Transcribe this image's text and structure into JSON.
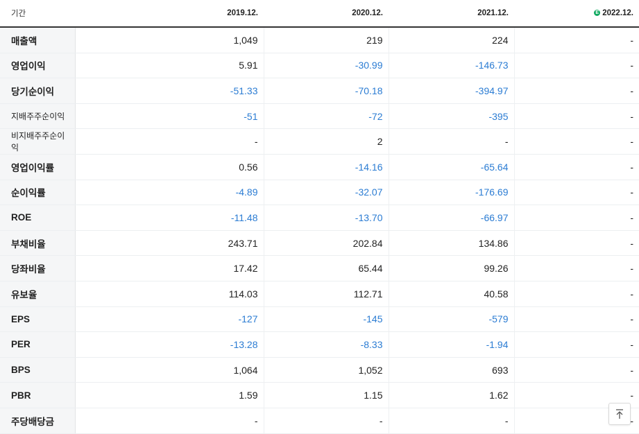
{
  "header": {
    "label": "기간",
    "periods": [
      "2019.12.",
      "2020.12.",
      "2021.12.",
      "2022.12."
    ],
    "estimate_badge": "E"
  },
  "rows": [
    {
      "name": "매출액",
      "values": [
        "1,049",
        "219",
        "224",
        "-"
      ]
    },
    {
      "name": "영업이익",
      "values": [
        "5.91",
        "-30.99",
        "-146.73",
        "-"
      ]
    },
    {
      "name": "당기순이익",
      "values": [
        "-51.33",
        "-70.18",
        "-394.97",
        "-"
      ]
    },
    {
      "name": "지배주주순이익",
      "values": [
        "-51",
        "-72",
        "-395",
        "-"
      ]
    },
    {
      "name": "비지배주주순이익",
      "values": [
        "-",
        "2",
        "-",
        "-"
      ]
    },
    {
      "name": "영업이익률",
      "values": [
        "0.56",
        "-14.16",
        "-65.64",
        "-"
      ]
    },
    {
      "name": "순이익률",
      "values": [
        "-4.89",
        "-32.07",
        "-176.69",
        "-"
      ]
    },
    {
      "name": "ROE",
      "values": [
        "-11.48",
        "-13.70",
        "-66.97",
        "-"
      ]
    },
    {
      "name": "부채비율",
      "values": [
        "243.71",
        "202.84",
        "134.86",
        "-"
      ]
    },
    {
      "name": "당좌비율",
      "values": [
        "17.42",
        "65.44",
        "99.26",
        "-"
      ]
    },
    {
      "name": "유보율",
      "values": [
        "114.03",
        "112.71",
        "40.58",
        "-"
      ]
    },
    {
      "name": "EPS",
      "values": [
        "-127",
        "-145",
        "-579",
        "-"
      ]
    },
    {
      "name": "PER",
      "values": [
        "-13.28",
        "-8.33",
        "-1.94",
        "-"
      ]
    },
    {
      "name": "BPS",
      "values": [
        "1,064",
        "1,052",
        "693",
        "-"
      ]
    },
    {
      "name": "PBR",
      "values": [
        "1.59",
        "1.15",
        "1.62",
        "-"
      ]
    },
    {
      "name": "주당배당금",
      "values": [
        "-",
        "-",
        "-",
        "-"
      ]
    }
  ],
  "colors": {
    "negative": "#2b7cd3",
    "estimate": "#0fa960"
  },
  "icons": {
    "scroll_top": "arrow-up-to-top-icon"
  }
}
